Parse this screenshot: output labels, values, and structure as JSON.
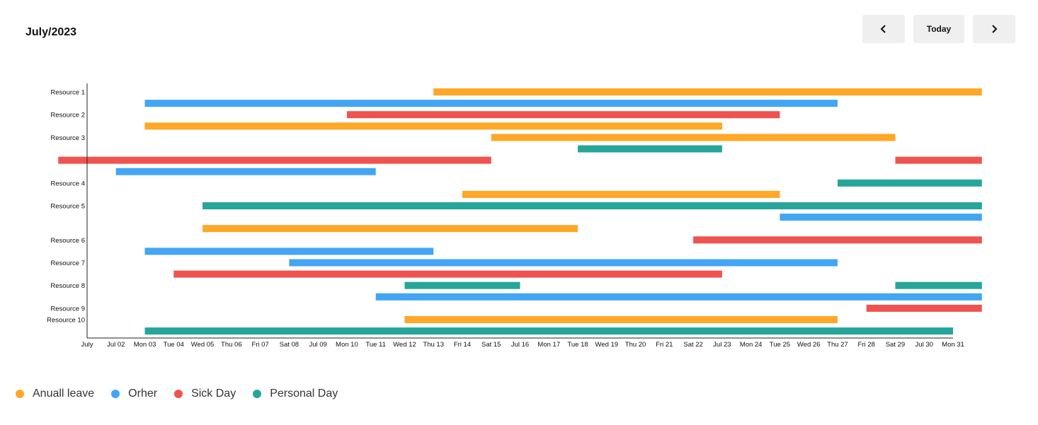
{
  "header": {
    "title": "July/2023",
    "prev_icon": "chevron-left-icon",
    "today_label": "Today",
    "next_icon": "chevron-right-icon"
  },
  "chart_data": {
    "type": "gantt",
    "period": "July 2023",
    "x_axis": {
      "ticks": [
        "July",
        "Jul 02",
        "Mon 03",
        "Tue 04",
        "Wed 05",
        "Thu 06",
        "Fri 07",
        "Sat 08",
        "Jul 09",
        "Mon 10",
        "Tue 11",
        "Wed 12",
        "Thu 13",
        "Fri 14",
        "Sat 15",
        "Jul 16",
        "Mon 17",
        "Tue 18",
        "Wed 19",
        "Thu 20",
        "Fri 21",
        "Sat 22",
        "Jul 23",
        "Mon 24",
        "Tue 25",
        "Wed 26",
        "Thu 27",
        "Fri 28",
        "Sat 29",
        "Jul 30",
        "Mon 31"
      ],
      "range": [
        "2023-07-01",
        "2023-08-01"
      ]
    },
    "y_axis": {
      "labels": [
        {
          "label": "Resource 1",
          "row": 0
        },
        {
          "label": "Resource 2",
          "row": 2
        },
        {
          "label": "Resource 3",
          "row": 4
        },
        {
          "label": "Resource 4",
          "row": 8
        },
        {
          "label": "Resource 5",
          "row": 10
        },
        {
          "label": "Resource 6",
          "row": 13
        },
        {
          "label": "Resource 7",
          "row": 15
        },
        {
          "label": "Resource 8",
          "row": 17
        },
        {
          "label": "Resource 9",
          "row": 19
        },
        {
          "label": "Resource 10",
          "row": 20
        }
      ],
      "row_count": 22
    },
    "legend": [
      {
        "name": "Anuall leave",
        "color": "#FFA726"
      },
      {
        "name": "Orher",
        "color": "#42A5F5"
      },
      {
        "name": "Sick Day",
        "color": "#EF5350"
      },
      {
        "name": "Personal Day",
        "color": "#26A69A"
      }
    ],
    "bars": [
      {
        "row": 0,
        "type": "Anuall leave",
        "start": "2023-07-13",
        "end": "2023-08-01"
      },
      {
        "row": 1,
        "type": "Orher",
        "start": "2023-07-03",
        "end": "2023-07-27"
      },
      {
        "row": 2,
        "type": "Sick Day",
        "start": "2023-07-10",
        "end": "2023-07-25"
      },
      {
        "row": 3,
        "type": "Anuall leave",
        "start": "2023-07-03",
        "end": "2023-07-23"
      },
      {
        "row": 4,
        "type": "Anuall leave",
        "start": "2023-07-15",
        "end": "2023-07-29"
      },
      {
        "row": 5,
        "type": "Personal Day",
        "start": "2023-07-18",
        "end": "2023-07-23"
      },
      {
        "row": 6,
        "type": "Sick Day",
        "start": "2023-06-30",
        "end": "2023-07-15"
      },
      {
        "row": 6,
        "type": "Sick Day",
        "start": "2023-07-29",
        "end": "2023-08-01"
      },
      {
        "row": 7,
        "type": "Orher",
        "start": "2023-07-02",
        "end": "2023-07-11"
      },
      {
        "row": 8,
        "type": "Personal Day",
        "start": "2023-07-27",
        "end": "2023-08-01"
      },
      {
        "row": 9,
        "type": "Anuall leave",
        "start": "2023-07-14",
        "end": "2023-07-25"
      },
      {
        "row": 10,
        "type": "Personal Day",
        "start": "2023-07-05",
        "end": "2023-08-01"
      },
      {
        "row": 11,
        "type": "Orher",
        "start": "2023-07-25",
        "end": "2023-08-01"
      },
      {
        "row": 12,
        "type": "Anuall leave",
        "start": "2023-07-05",
        "end": "2023-07-18"
      },
      {
        "row": 13,
        "type": "Sick Day",
        "start": "2023-07-22",
        "end": "2023-08-01"
      },
      {
        "row": 14,
        "type": "Orher",
        "start": "2023-07-03",
        "end": "2023-07-13"
      },
      {
        "row": 15,
        "type": "Orher",
        "start": "2023-07-08",
        "end": "2023-07-27"
      },
      {
        "row": 16,
        "type": "Sick Day",
        "start": "2023-07-04",
        "end": "2023-07-23"
      },
      {
        "row": 17,
        "type": "Personal Day",
        "start": "2023-07-12",
        "end": "2023-07-16"
      },
      {
        "row": 17,
        "type": "Personal Day",
        "start": "2023-07-29",
        "end": "2023-08-01"
      },
      {
        "row": 18,
        "type": "Orher",
        "start": "2023-07-11",
        "end": "2023-08-01"
      },
      {
        "row": 19,
        "type": "Sick Day",
        "start": "2023-07-28",
        "end": "2023-08-01"
      },
      {
        "row": 20,
        "type": "Anuall leave",
        "start": "2023-07-12",
        "end": "2023-07-27"
      },
      {
        "row": 21,
        "type": "Personal Day",
        "start": "2023-07-03",
        "end": "2023-07-31"
      }
    ]
  }
}
